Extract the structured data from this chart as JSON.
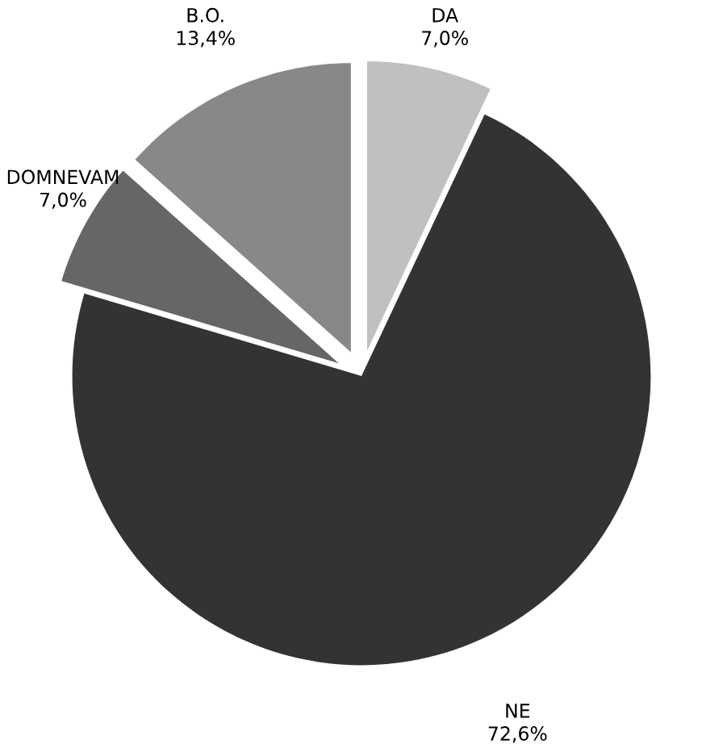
{
  "chart_data": {
    "type": "pie",
    "categories": [
      "DA",
      "NE",
      "DOMNEVAM",
      "B.O."
    ],
    "values": [
      7.0,
      72.6,
      7.0,
      13.4
    ],
    "value_labels": [
      "7,0%",
      "72,6%",
      "7,0%",
      "13,4%"
    ],
    "colors": [
      "#c0c0c0",
      "#333333",
      "#666666",
      "#888888"
    ],
    "legend": false
  }
}
